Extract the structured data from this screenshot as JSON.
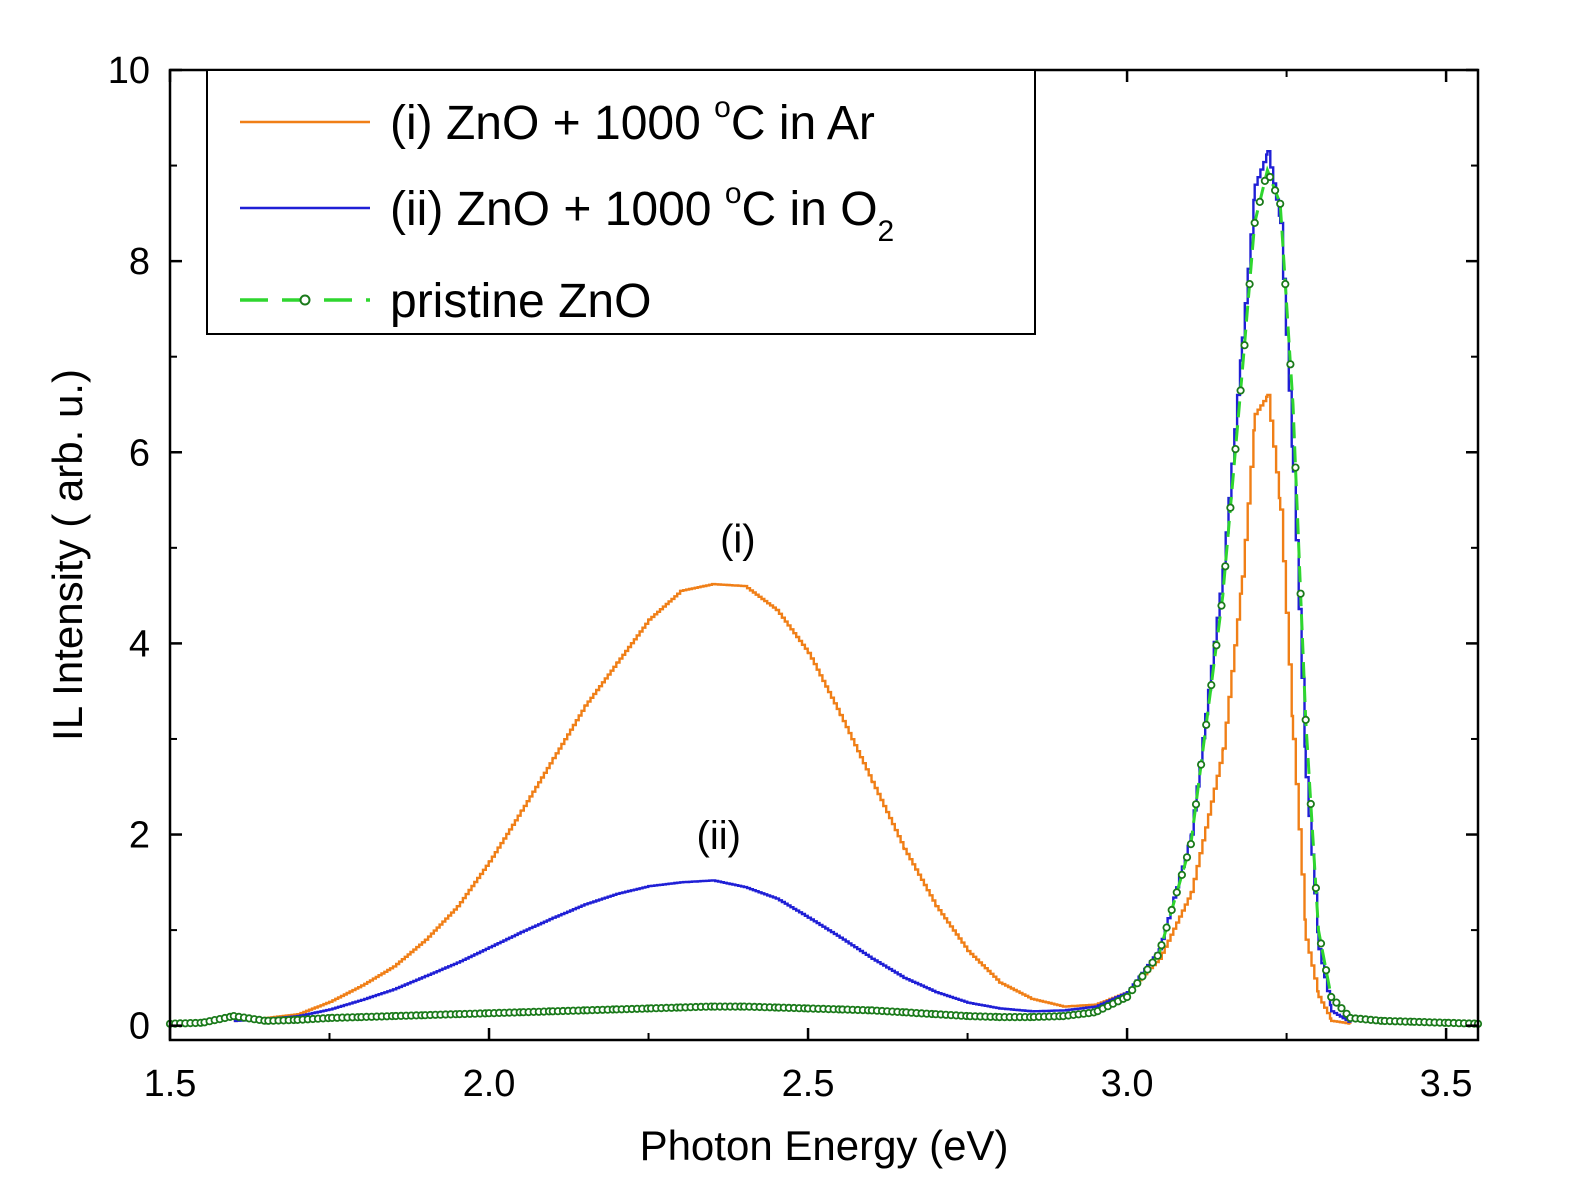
{
  "chart_data": {
    "type": "line",
    "xlabel": "Photon Energy (eV)",
    "ylabel": "IL Intensity ( arb. u.)",
    "xlim": [
      1.5,
      3.55
    ],
    "ylim": [
      -0.15,
      10.0
    ],
    "xticks": [
      1.5,
      2.0,
      2.5,
      3.0,
      3.5
    ],
    "xtick_labels": [
      "1.5",
      "2.0",
      "2.5",
      "3.0",
      "3.5"
    ],
    "yticks": [
      0,
      2,
      4,
      6,
      8,
      10
    ],
    "ytick_labels": [
      "0",
      "2",
      "4",
      "6",
      "8",
      "10"
    ],
    "legend_position": "top-left",
    "series": [
      {
        "name": "(i) ZnO + 1000 °C in Ar",
        "legend_main": "(i) ZnO + 1000 ",
        "legend_sup": "o",
        "legend_tail": "C in Ar",
        "legend_sub": "",
        "color": "#f07f17",
        "style": "solid",
        "x": [
          1.6,
          1.65,
          1.7,
          1.75,
          1.8,
          1.85,
          1.9,
          1.95,
          2.0,
          2.05,
          2.1,
          2.15,
          2.2,
          2.25,
          2.3,
          2.35,
          2.4,
          2.45,
          2.5,
          2.55,
          2.6,
          2.65,
          2.7,
          2.75,
          2.8,
          2.85,
          2.9,
          2.95,
          3.0,
          3.05,
          3.1,
          3.15,
          3.18,
          3.2,
          3.22,
          3.24,
          3.26,
          3.28,
          3.3,
          3.32,
          3.35
        ],
        "y": [
          0.05,
          0.08,
          0.12,
          0.25,
          0.42,
          0.62,
          0.9,
          1.25,
          1.72,
          2.25,
          2.8,
          3.35,
          3.8,
          4.25,
          4.55,
          4.62,
          4.6,
          4.35,
          3.9,
          3.25,
          2.55,
          1.85,
          1.25,
          0.78,
          0.45,
          0.28,
          0.2,
          0.22,
          0.35,
          0.7,
          1.4,
          2.9,
          4.7,
          6.4,
          6.6,
          5.4,
          3.0,
          0.9,
          0.3,
          0.05,
          0.02
        ]
      },
      {
        "name": "(ii) ZnO + 1000 °C in O2",
        "legend_main": "(ii) ZnO + 1000 ",
        "legend_sup": "o",
        "legend_tail": "C in O",
        "legend_sub": "2",
        "color": "#1f1fd6",
        "style": "solid",
        "x": [
          1.6,
          1.65,
          1.7,
          1.75,
          1.8,
          1.85,
          1.9,
          1.95,
          2.0,
          2.05,
          2.1,
          2.15,
          2.2,
          2.25,
          2.3,
          2.35,
          2.4,
          2.45,
          2.5,
          2.55,
          2.6,
          2.65,
          2.7,
          2.75,
          2.8,
          2.85,
          2.9,
          2.95,
          3.0,
          3.05,
          3.1,
          3.15,
          3.18,
          3.2,
          3.22,
          3.24,
          3.26,
          3.28,
          3.3,
          3.32,
          3.35
        ],
        "y": [
          0.05,
          0.07,
          0.1,
          0.17,
          0.27,
          0.38,
          0.52,
          0.66,
          0.82,
          0.98,
          1.13,
          1.27,
          1.38,
          1.46,
          1.5,
          1.52,
          1.45,
          1.33,
          1.13,
          0.92,
          0.7,
          0.5,
          0.35,
          0.24,
          0.18,
          0.15,
          0.16,
          0.2,
          0.35,
          0.8,
          2.0,
          4.8,
          7.2,
          8.8,
          9.15,
          8.4,
          5.8,
          2.6,
          0.8,
          0.15,
          0.03
        ]
      },
      {
        "name": "pristine ZnO",
        "legend_main": "pristine ZnO",
        "legend_sup": "",
        "legend_tail": "",
        "legend_sub": "",
        "color": "#2fd62f",
        "marker_color": "#1a7a1a",
        "style": "dash-circle",
        "x": [
          1.5,
          1.55,
          1.6,
          1.65,
          1.7,
          1.75,
          1.8,
          1.85,
          1.9,
          1.95,
          2.0,
          2.05,
          2.1,
          2.15,
          2.2,
          2.25,
          2.3,
          2.35,
          2.4,
          2.45,
          2.5,
          2.55,
          2.6,
          2.65,
          2.7,
          2.75,
          2.8,
          2.85,
          2.9,
          2.95,
          3.0,
          3.05,
          3.1,
          3.15,
          3.18,
          3.2,
          3.22,
          3.24,
          3.26,
          3.28,
          3.3,
          3.32,
          3.35,
          3.4,
          3.45,
          3.5,
          3.55
        ],
        "y": [
          0.02,
          0.03,
          0.1,
          0.05,
          0.06,
          0.08,
          0.09,
          0.1,
          0.11,
          0.12,
          0.13,
          0.14,
          0.15,
          0.16,
          0.17,
          0.18,
          0.19,
          0.2,
          0.2,
          0.19,
          0.18,
          0.17,
          0.16,
          0.14,
          0.12,
          0.1,
          0.09,
          0.09,
          0.1,
          0.14,
          0.3,
          0.75,
          1.9,
          4.5,
          6.8,
          8.4,
          8.95,
          8.6,
          6.5,
          3.2,
          1.0,
          0.3,
          0.08,
          0.05,
          0.04,
          0.03,
          0.02
        ]
      }
    ],
    "annotations": [
      {
        "text": "(i)",
        "x": 2.39,
        "y": 4.95
      },
      {
        "text": "(ii)",
        "x": 2.36,
        "y": 1.85
      }
    ]
  }
}
